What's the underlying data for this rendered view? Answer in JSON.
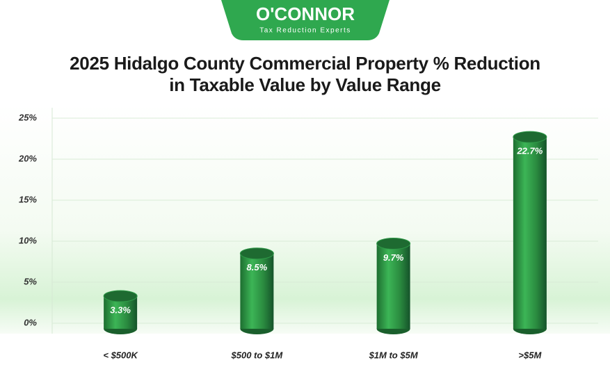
{
  "logo": {
    "name": "O'CONNOR",
    "tagline": "Tax Reduction Experts"
  },
  "chart_data": {
    "type": "bar",
    "title": "2025 Hidalgo County Commercial Property % Reduction in Taxable Value by Value Range",
    "categories": [
      "< $500K",
      "$500 to $1M",
      "$1M to $5M",
      ">$5M"
    ],
    "values": [
      3.3,
      8.5,
      9.7,
      22.7
    ],
    "value_labels": [
      "3.3%",
      "8.5%",
      "9.7%",
      "22.7%"
    ],
    "color": "#2e9e48",
    "ylim": [
      0,
      25
    ],
    "yticks": [
      {
        "value": 0,
        "label": "0%"
      },
      {
        "value": 5,
        "label": "5%"
      },
      {
        "value": 10,
        "label": "10%"
      },
      {
        "value": 15,
        "label": "15%"
      },
      {
        "value": 20,
        "label": "20%"
      },
      {
        "value": 25,
        "label": "25%"
      }
    ],
    "grid": true
  }
}
